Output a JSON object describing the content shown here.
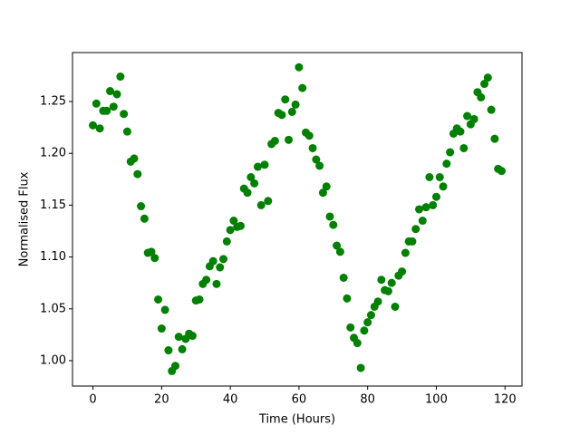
{
  "chart_data": {
    "type": "scatter",
    "color": "#008000",
    "x_label": "Time (Hours)",
    "y_label": "Normalised Flux",
    "x": [
      0,
      1,
      2,
      3,
      4,
      5,
      6,
      7,
      8,
      9,
      10,
      11,
      12,
      13,
      14,
      15,
      16,
      17,
      18,
      19,
      20,
      21,
      22,
      23,
      24,
      25,
      26,
      27,
      28,
      29,
      30,
      31,
      32,
      33,
      34,
      35,
      36,
      37,
      38,
      39,
      40,
      41,
      42,
      43,
      44,
      45,
      46,
      47,
      48,
      49,
      50,
      51,
      52,
      53,
      54,
      55,
      56,
      57,
      58,
      59,
      60,
      61,
      62,
      63,
      64,
      65,
      66,
      67,
      68,
      69,
      70,
      71,
      72,
      73,
      74,
      75,
      76,
      77,
      78,
      79,
      80,
      81,
      82,
      83,
      84,
      85,
      86,
      87,
      88,
      89,
      90,
      91,
      92,
      93,
      94,
      95,
      96,
      97,
      98,
      99,
      100,
      101,
      102,
      103,
      104,
      105,
      106,
      107,
      108,
      109,
      110,
      111,
      112,
      113,
      114,
      115,
      116,
      117,
      118,
      119
    ],
    "values": [
      1.227,
      1.248,
      1.224,
      1.241,
      1.241,
      1.26,
      1.245,
      1.257,
      1.274,
      1.238,
      1.221,
      1.192,
      1.195,
      1.18,
      1.149,
      1.137,
      1.104,
      1.105,
      1.099,
      1.059,
      1.031,
      1.049,
      1.01,
      0.99,
      0.995,
      1.023,
      1.011,
      1.021,
      1.026,
      1.024,
      1.058,
      1.059,
      1.074,
      1.078,
      1.091,
      1.096,
      1.074,
      1.09,
      1.098,
      1.115,
      1.126,
      1.135,
      1.129,
      1.13,
      1.166,
      1.162,
      1.177,
      1.171,
      1.187,
      1.15,
      1.189,
      1.154,
      1.209,
      1.212,
      1.239,
      1.237,
      1.252,
      1.213,
      1.24,
      1.247,
      1.283,
      1.263,
      1.22,
      1.217,
      1.205,
      1.194,
      1.188,
      1.162,
      1.168,
      1.139,
      1.131,
      1.111,
      1.105,
      1.08,
      1.06,
      1.032,
      1.022,
      1.017,
      0.993,
      1.029,
      1.037,
      1.044,
      1.052,
      1.057,
      1.078,
      1.068,
      1.067,
      1.075,
      1.052,
      1.082,
      1.086,
      1.104,
      1.115,
      1.115,
      1.127,
      1.146,
      1.135,
      1.148,
      1.177,
      1.15,
      1.158,
      1.177,
      1.168,
      1.19,
      1.201,
      1.219,
      1.224,
      1.221,
      1.205,
      1.236,
      1.228,
      1.233,
      1.259,
      1.254,
      1.267,
      1.273,
      1.242,
      1.214,
      1.185,
      1.183
    ],
    "xlim": [
      -5.95,
      124.95
    ],
    "xticks": [
      0,
      20,
      40,
      60,
      80,
      100,
      120
    ],
    "ylim": [
      0.9755,
      1.2972
    ],
    "yticks": [
      {
        "value": 1,
        "label": "1.00"
      },
      1.05,
      {
        "value": 1.1,
        "label": "1.10"
      },
      1.15,
      {
        "value": 1.2,
        "label": "1.20"
      },
      1.25
    ]
  }
}
